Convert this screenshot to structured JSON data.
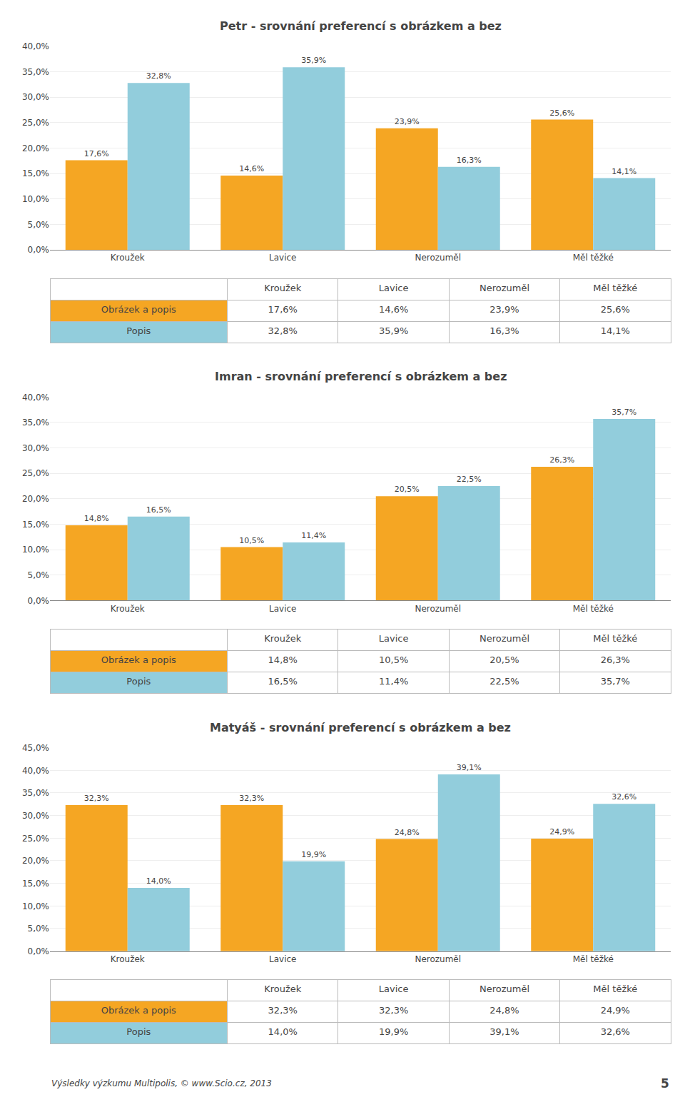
{
  "chart_data": [
    {
      "type": "bar",
      "title": "Petr - srovnání preferencí s obrázkem a bez",
      "categories": [
        "Kroužek",
        "Lavice",
        "Nerozuměl",
        "Měl těžké"
      ],
      "series": [
        {
          "name": "Obrázek a popis",
          "color": "#F5A623",
          "values": [
            0.176,
            0.146,
            0.239,
            0.256
          ],
          "value_labels": [
            "17,6%",
            "14,6%",
            "23,9%",
            "25,6%"
          ]
        },
        {
          "name": "Popis",
          "color": "#92CDDC",
          "values": [
            0.328,
            0.359,
            0.163,
            0.141
          ],
          "value_labels": [
            "32,8%",
            "35,9%",
            "16,3%",
            "14,1%"
          ]
        }
      ],
      "ylim": [
        0,
        0.4
      ],
      "yticks": [
        {
          "value": 0.0,
          "label": "0,0%"
        },
        {
          "value": 0.05,
          "label": "5,0%"
        },
        {
          "value": 0.1,
          "label": "10,0%"
        },
        {
          "value": 0.15,
          "label": "15,0%"
        },
        {
          "value": 0.2,
          "label": "20,0%"
        },
        {
          "value": 0.25,
          "label": "25,0%"
        },
        {
          "value": 0.3,
          "label": "30,0%"
        },
        {
          "value": 0.35,
          "label": "35,0%"
        },
        {
          "value": 0.4,
          "label": "40,0%"
        }
      ],
      "grid": true,
      "data_labels": true
    },
    {
      "type": "bar",
      "title": "Imran - srovnání preferencí s obrázkem a bez",
      "categories": [
        "Kroužek",
        "Lavice",
        "Nerozuměl",
        "Měl těžké"
      ],
      "series": [
        {
          "name": "Obrázek a popis",
          "color": "#F5A623",
          "values": [
            0.148,
            0.105,
            0.205,
            0.263
          ],
          "value_labels": [
            "14,8%",
            "10,5%",
            "20,5%",
            "26,3%"
          ]
        },
        {
          "name": "Popis",
          "color": "#92CDDC",
          "values": [
            0.165,
            0.114,
            0.225,
            0.357
          ],
          "value_labels": [
            "16,5%",
            "11,4%",
            "22,5%",
            "35,7%"
          ]
        }
      ],
      "ylim": [
        0,
        0.4
      ],
      "yticks": [
        {
          "value": 0.0,
          "label": "0,0%"
        },
        {
          "value": 0.05,
          "label": "5,0%"
        },
        {
          "value": 0.1,
          "label": "10,0%"
        },
        {
          "value": 0.15,
          "label": "15,0%"
        },
        {
          "value": 0.2,
          "label": "20,0%"
        },
        {
          "value": 0.25,
          "label": "25,0%"
        },
        {
          "value": 0.3,
          "label": "30,0%"
        },
        {
          "value": 0.35,
          "label": "35,0%"
        },
        {
          "value": 0.4,
          "label": "40,0%"
        }
      ],
      "grid": true,
      "data_labels": true
    },
    {
      "type": "bar",
      "title": "Matyáš - srovnání preferencí s obrázkem a bez",
      "categories": [
        "Kroužek",
        "Lavice",
        "Nerozuměl",
        "Měl těžké"
      ],
      "series": [
        {
          "name": "Obrázek a popis",
          "color": "#F5A623",
          "values": [
            0.323,
            0.323,
            0.248,
            0.249
          ],
          "value_labels": [
            "32,3%",
            "32,3%",
            "24,8%",
            "24,9%"
          ]
        },
        {
          "name": "Popis",
          "color": "#92CDDC",
          "values": [
            0.14,
            0.199,
            0.391,
            0.326
          ],
          "value_labels": [
            "14,0%",
            "19,9%",
            "39,1%",
            "32,6%"
          ]
        }
      ],
      "ylim": [
        0,
        0.45
      ],
      "yticks": [
        {
          "value": 0.0,
          "label": "0,0%"
        },
        {
          "value": 0.05,
          "label": "5,0%"
        },
        {
          "value": 0.1,
          "label": "10,0%"
        },
        {
          "value": 0.15,
          "label": "15,0%"
        },
        {
          "value": 0.2,
          "label": "20,0%"
        },
        {
          "value": 0.25,
          "label": "25,0%"
        },
        {
          "value": 0.3,
          "label": "30,0%"
        },
        {
          "value": 0.35,
          "label": "35,0%"
        },
        {
          "value": 0.4,
          "label": "40,0%"
        },
        {
          "value": 0.45,
          "label": "45,0%"
        }
      ],
      "grid": true,
      "data_labels": true
    }
  ],
  "annotations": [
    "Výsledky výzkumu Multipolis, © www.Scio.cz, 2013",
    "5"
  ]
}
